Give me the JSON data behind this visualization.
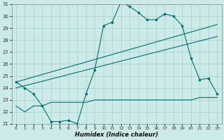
{
  "title": "",
  "xlabel": "Humidex (Indice chaleur)",
  "ylabel": "",
  "bg_color": "#cceae7",
  "grid_color": "#aad5d2",
  "line_color": "#007070",
  "ylim": [
    21,
    31
  ],
  "xlim": [
    -0.5,
    23.5
  ],
  "yticks": [
    21,
    22,
    23,
    24,
    25,
    26,
    27,
    28,
    29,
    30,
    31
  ],
  "xticks": [
    0,
    1,
    2,
    3,
    4,
    5,
    6,
    7,
    8,
    9,
    10,
    11,
    12,
    13,
    14,
    15,
    16,
    17,
    18,
    19,
    20,
    21,
    22,
    23
  ],
  "series1_x": [
    0,
    1,
    2,
    3,
    4,
    5,
    6,
    7,
    8,
    9,
    10,
    11,
    12,
    13,
    14,
    15,
    16,
    17,
    18,
    19,
    20,
    21,
    22,
    23
  ],
  "series1_y": [
    24.5,
    24.0,
    23.5,
    22.5,
    21.2,
    21.2,
    21.3,
    21.0,
    23.5,
    25.5,
    29.2,
    29.5,
    31.2,
    30.8,
    30.3,
    29.7,
    29.7,
    30.2,
    30.0,
    29.2,
    26.5,
    24.7,
    24.8,
    23.5
  ],
  "series2_x": [
    0,
    1,
    2,
    3,
    4,
    5,
    6,
    7,
    8,
    9,
    10,
    11,
    12,
    13,
    14,
    15,
    16,
    17,
    18,
    19,
    20,
    21,
    22,
    23
  ],
  "series2_y": [
    22.5,
    22.0,
    22.5,
    22.5,
    22.8,
    22.8,
    22.8,
    22.8,
    22.8,
    23.0,
    23.0,
    23.0,
    23.0,
    23.0,
    23.0,
    23.0,
    23.0,
    23.0,
    23.0,
    23.0,
    23.0,
    23.2,
    23.2,
    23.2
  ],
  "series3_x": [
    0,
    23
  ],
  "series3_y": [
    24.5,
    29.3
  ],
  "series4_x": [
    0,
    23
  ],
  "series4_y": [
    24.0,
    28.3
  ]
}
